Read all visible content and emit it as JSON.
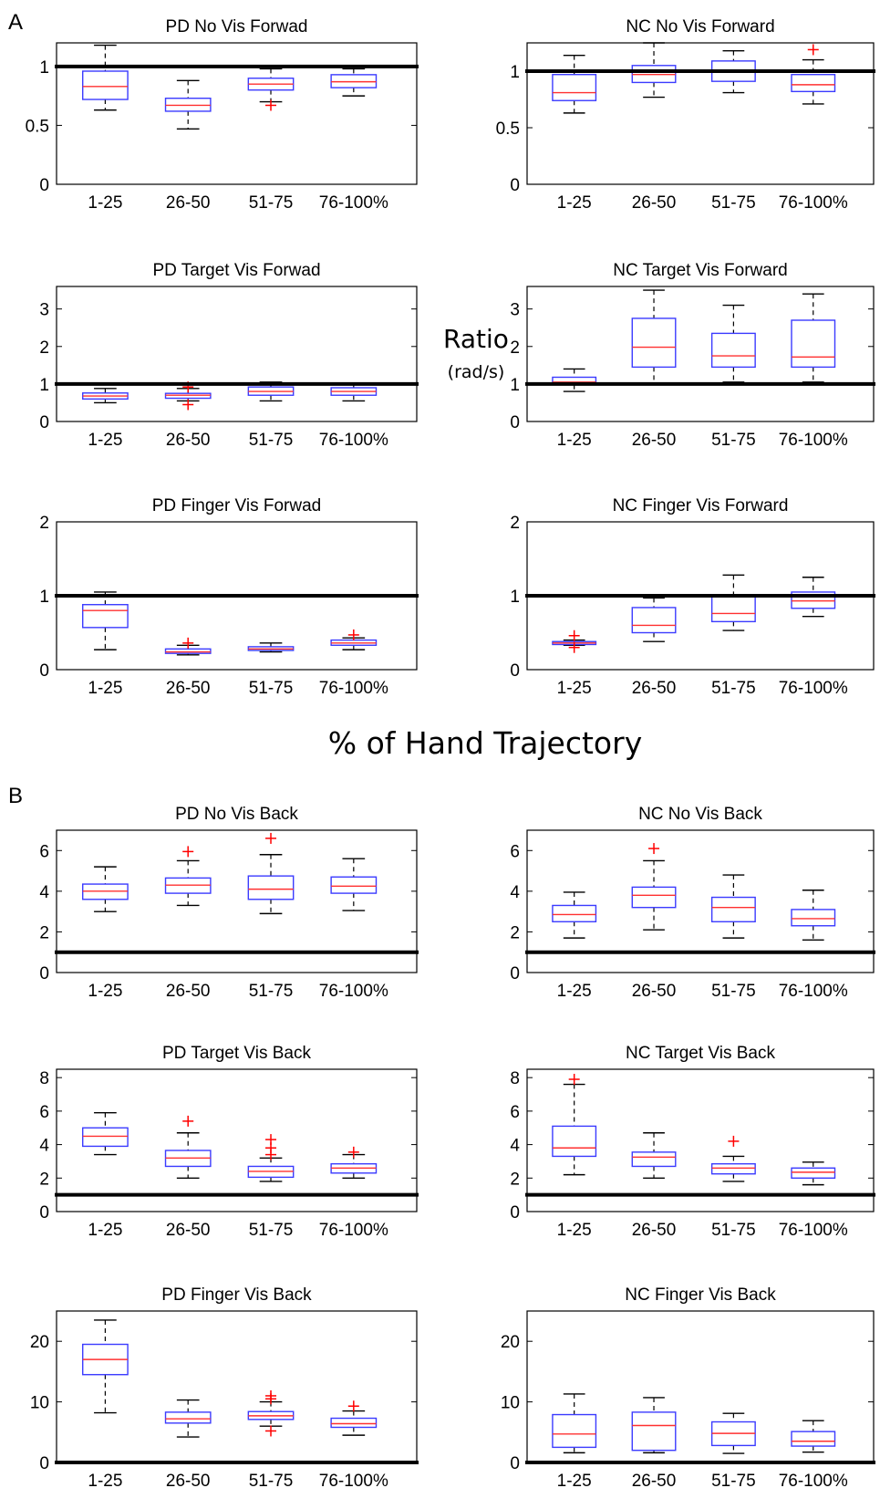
{
  "figure": {
    "panel_a_letter": "A",
    "panel_b_letter": "B",
    "ylabel_main": "Ratio",
    "ylabel_unit": "(rad/s)",
    "xlabel_main": "% of Hand Trajectory"
  },
  "colors": {
    "box": "#3b3bff",
    "median": "#ff3030",
    "outlier": "#ff0000",
    "whisker": "#000000",
    "reference": "#000000"
  },
  "chart_data": [
    {
      "type": "box",
      "title": "PD No Vis Forwad",
      "categories": [
        "1-25",
        "26-50",
        "51-75",
        "76-100%"
      ],
      "ylim": [
        0,
        1.2
      ],
      "yticks": [
        0,
        0.5,
        1
      ],
      "reference_line": 1,
      "boxes": [
        {
          "whisker_low": 0.63,
          "q1": 0.72,
          "median": 0.83,
          "q3": 0.96,
          "whisker_high": 1.18,
          "outliers": []
        },
        {
          "whisker_low": 0.47,
          "q1": 0.62,
          "median": 0.67,
          "q3": 0.73,
          "whisker_high": 0.88,
          "outliers": []
        },
        {
          "whisker_low": 0.7,
          "q1": 0.8,
          "median": 0.85,
          "q3": 0.9,
          "whisker_high": 0.98,
          "outliers": [
            0.67
          ]
        },
        {
          "whisker_low": 0.75,
          "q1": 0.82,
          "median": 0.87,
          "q3": 0.93,
          "whisker_high": 0.98,
          "outliers": []
        }
      ]
    },
    {
      "type": "box",
      "title": "NC No Vis Forward",
      "categories": [
        "1-25",
        "26-50",
        "51-75",
        "76-100%"
      ],
      "ylim": [
        0,
        1.25
      ],
      "yticks": [
        0,
        0.5,
        1
      ],
      "reference_line": 1,
      "boxes": [
        {
          "whisker_low": 0.63,
          "q1": 0.74,
          "median": 0.81,
          "q3": 0.97,
          "whisker_high": 1.14,
          "outliers": []
        },
        {
          "whisker_low": 0.77,
          "q1": 0.9,
          "median": 0.97,
          "q3": 1.05,
          "whisker_high": 1.25,
          "outliers": []
        },
        {
          "whisker_low": 0.81,
          "q1": 0.91,
          "median": 1.0,
          "q3": 1.09,
          "whisker_high": 1.18,
          "outliers": []
        },
        {
          "whisker_low": 0.71,
          "q1": 0.82,
          "median": 0.88,
          "q3": 0.97,
          "whisker_high": 1.1,
          "outliers": [
            1.19
          ]
        }
      ]
    },
    {
      "type": "box",
      "title": "PD Target Vis Forwad",
      "categories": [
        "1-25",
        "26-50",
        "51-75",
        "76-100%"
      ],
      "ylim": [
        0,
        3.6
      ],
      "yticks": [
        0,
        1,
        2,
        3
      ],
      "reference_line": 1,
      "boxes": [
        {
          "whisker_low": 0.5,
          "q1": 0.6,
          "median": 0.68,
          "q3": 0.76,
          "whisker_high": 0.88,
          "outliers": []
        },
        {
          "whisker_low": 0.55,
          "q1": 0.62,
          "median": 0.7,
          "q3": 0.75,
          "whisker_high": 0.88,
          "outliers": [
            0.45,
            0.92
          ]
        },
        {
          "whisker_low": 0.55,
          "q1": 0.7,
          "median": 0.8,
          "q3": 0.92,
          "whisker_high": 1.05,
          "outliers": []
        },
        {
          "whisker_low": 0.55,
          "q1": 0.7,
          "median": 0.8,
          "q3": 0.9,
          "whisker_high": 0.98,
          "outliers": []
        }
      ]
    },
    {
      "type": "box",
      "title": "NC Target Vis Forward",
      "categories": [
        "1-25",
        "26-50",
        "51-75",
        "76-100%"
      ],
      "ylim": [
        0,
        3.6
      ],
      "yticks": [
        0,
        1,
        2,
        3
      ],
      "reference_line": 1,
      "boxes": [
        {
          "whisker_low": 0.8,
          "q1": 0.98,
          "median": 1.05,
          "q3": 1.18,
          "whisker_high": 1.4,
          "outliers": []
        },
        {
          "whisker_low": 1.0,
          "q1": 1.45,
          "median": 1.98,
          "q3": 2.75,
          "whisker_high": 3.5,
          "outliers": []
        },
        {
          "whisker_low": 1.05,
          "q1": 1.45,
          "median": 1.75,
          "q3": 2.35,
          "whisker_high": 3.1,
          "outliers": []
        },
        {
          "whisker_low": 1.05,
          "q1": 1.45,
          "median": 1.72,
          "q3": 2.7,
          "whisker_high": 3.4,
          "outliers": []
        }
      ]
    },
    {
      "type": "box",
      "title": "PD Finger Vis Forwad",
      "categories": [
        "1-25",
        "26-50",
        "51-75",
        "76-100%"
      ],
      "ylim": [
        0,
        2
      ],
      "yticks": [
        0,
        1,
        2
      ],
      "reference_line": 1,
      "boxes": [
        {
          "whisker_low": 0.27,
          "q1": 0.57,
          "median": 0.8,
          "q3": 0.88,
          "whisker_high": 1.05,
          "outliers": []
        },
        {
          "whisker_low": 0.2,
          "q1": 0.22,
          "median": 0.24,
          "q3": 0.28,
          "whisker_high": 0.33,
          "outliers": [
            0.36
          ]
        },
        {
          "whisker_low": 0.24,
          "q1": 0.26,
          "median": 0.28,
          "q3": 0.31,
          "whisker_high": 0.36,
          "outliers": []
        },
        {
          "whisker_low": 0.27,
          "q1": 0.33,
          "median": 0.36,
          "q3": 0.4,
          "whisker_high": 0.43,
          "outliers": [
            0.47
          ]
        }
      ]
    },
    {
      "type": "box",
      "title": "NC Finger Vis Forward",
      "categories": [
        "1-25",
        "26-50",
        "51-75",
        "76-100%"
      ],
      "ylim": [
        0,
        2
      ],
      "yticks": [
        0,
        1,
        2
      ],
      "reference_line": 1,
      "boxes": [
        {
          "whisker_low": 0.33,
          "q1": 0.34,
          "median": 0.36,
          "q3": 0.38,
          "whisker_high": 0.4,
          "outliers": [
            0.3,
            0.46
          ]
        },
        {
          "whisker_low": 0.38,
          "q1": 0.5,
          "median": 0.6,
          "q3": 0.84,
          "whisker_high": 0.97,
          "outliers": []
        },
        {
          "whisker_low": 0.53,
          "q1": 0.65,
          "median": 0.76,
          "q3": 1.0,
          "whisker_high": 1.28,
          "outliers": []
        },
        {
          "whisker_low": 0.72,
          "q1": 0.83,
          "median": 0.93,
          "q3": 1.05,
          "whisker_high": 1.25,
          "outliers": []
        }
      ]
    },
    {
      "type": "box",
      "title": "PD No Vis Back",
      "categories": [
        "1-25",
        "26-50",
        "51-75",
        "76-100%"
      ],
      "ylim": [
        0,
        7
      ],
      "yticks": [
        0,
        2,
        4,
        6
      ],
      "reference_line": 1,
      "boxes": [
        {
          "whisker_low": 3.0,
          "q1": 3.6,
          "median": 4.0,
          "q3": 4.35,
          "whisker_high": 5.2,
          "outliers": []
        },
        {
          "whisker_low": 3.3,
          "q1": 3.9,
          "median": 4.3,
          "q3": 4.65,
          "whisker_high": 5.5,
          "outliers": [
            5.95
          ]
        },
        {
          "whisker_low": 2.9,
          "q1": 3.6,
          "median": 4.1,
          "q3": 4.75,
          "whisker_high": 5.8,
          "outliers": [
            6.6
          ]
        },
        {
          "whisker_low": 3.05,
          "q1": 3.9,
          "median": 4.25,
          "q3": 4.7,
          "whisker_high": 5.6,
          "outliers": []
        }
      ]
    },
    {
      "type": "box",
      "title": "NC No Vis Back",
      "categories": [
        "1-25",
        "26-50",
        "51-75",
        "76-100%"
      ],
      "ylim": [
        0,
        7
      ],
      "yticks": [
        0,
        2,
        4,
        6
      ],
      "reference_line": 1,
      "boxes": [
        {
          "whisker_low": 1.7,
          "q1": 2.5,
          "median": 2.85,
          "q3": 3.3,
          "whisker_high": 3.95,
          "outliers": []
        },
        {
          "whisker_low": 2.1,
          "q1": 3.2,
          "median": 3.8,
          "q3": 4.2,
          "whisker_high": 5.5,
          "outliers": [
            6.1
          ]
        },
        {
          "whisker_low": 1.7,
          "q1": 2.5,
          "median": 3.2,
          "q3": 3.7,
          "whisker_high": 4.8,
          "outliers": []
        },
        {
          "whisker_low": 1.6,
          "q1": 2.3,
          "median": 2.65,
          "q3": 3.1,
          "whisker_high": 4.05,
          "outliers": []
        }
      ]
    },
    {
      "type": "box",
      "title": "PD Target Vis Back",
      "categories": [
        "1-25",
        "26-50",
        "51-75",
        "76-100%"
      ],
      "ylim": [
        0,
        8.5
      ],
      "yticks": [
        0,
        2,
        4,
        6,
        8
      ],
      "reference_line": 1,
      "boxes": [
        {
          "whisker_low": 3.4,
          "q1": 3.9,
          "median": 4.5,
          "q3": 5.0,
          "whisker_high": 5.9,
          "outliers": []
        },
        {
          "whisker_low": 2.0,
          "q1": 2.7,
          "median": 3.2,
          "q3": 3.65,
          "whisker_high": 4.7,
          "outliers": [
            5.4
          ]
        },
        {
          "whisker_low": 1.8,
          "q1": 2.05,
          "median": 2.4,
          "q3": 2.7,
          "whisker_high": 3.2,
          "outliers": [
            3.4,
            3.8,
            4.3
          ]
        },
        {
          "whisker_low": 2.0,
          "q1": 2.3,
          "median": 2.6,
          "q3": 2.85,
          "whisker_high": 3.4,
          "outliers": [
            3.55
          ]
        }
      ]
    },
    {
      "type": "box",
      "title": "NC Target Vis Back",
      "categories": [
        "1-25",
        "26-50",
        "51-75",
        "76-100%"
      ],
      "ylim": [
        0,
        8.5
      ],
      "yticks": [
        0,
        2,
        4,
        6,
        8
      ],
      "reference_line": 1,
      "boxes": [
        {
          "whisker_low": 2.2,
          "q1": 3.3,
          "median": 3.8,
          "q3": 5.1,
          "whisker_high": 7.6,
          "outliers": [
            7.9
          ]
        },
        {
          "whisker_low": 2.0,
          "q1": 2.7,
          "median": 3.25,
          "q3": 3.55,
          "whisker_high": 4.7,
          "outliers": []
        },
        {
          "whisker_low": 1.8,
          "q1": 2.25,
          "median": 2.6,
          "q3": 2.85,
          "whisker_high": 3.3,
          "outliers": [
            4.2
          ]
        },
        {
          "whisker_low": 1.6,
          "q1": 2.0,
          "median": 2.35,
          "q3": 2.6,
          "whisker_high": 2.95,
          "outliers": []
        }
      ]
    },
    {
      "type": "box",
      "title": "PD Finger Vis Back",
      "categories": [
        "1-25",
        "26-50",
        "51-75",
        "76-100%"
      ],
      "ylim": [
        0,
        25
      ],
      "yticks": [
        0,
        10,
        20
      ],
      "reference_line": 0,
      "boxes": [
        {
          "whisker_low": 8.2,
          "q1": 14.5,
          "median": 17.0,
          "q3": 19.5,
          "whisker_high": 23.5,
          "outliers": []
        },
        {
          "whisker_low": 4.2,
          "q1": 6.5,
          "median": 7.2,
          "q3": 8.3,
          "whisker_high": 10.3,
          "outliers": []
        },
        {
          "whisker_low": 6.0,
          "q1": 7.1,
          "median": 7.7,
          "q3": 8.4,
          "whisker_high": 10.0,
          "outliers": [
            5.2,
            10.5,
            11.0
          ]
        },
        {
          "whisker_low": 4.5,
          "q1": 5.8,
          "median": 6.4,
          "q3": 7.3,
          "whisker_high": 8.5,
          "outliers": [
            9.3
          ]
        }
      ]
    },
    {
      "type": "box",
      "title": "NC Finger Vis Back",
      "categories": [
        "1-25",
        "26-50",
        "51-75",
        "76-100%"
      ],
      "ylim": [
        0,
        25
      ],
      "yticks": [
        0,
        10,
        20
      ],
      "reference_line": 0,
      "boxes": [
        {
          "whisker_low": 1.6,
          "q1": 2.5,
          "median": 4.7,
          "q3": 7.9,
          "whisker_high": 11.3,
          "outliers": []
        },
        {
          "whisker_low": 1.6,
          "q1": 2.0,
          "median": 6.1,
          "q3": 8.3,
          "whisker_high": 10.7,
          "outliers": []
        },
        {
          "whisker_low": 1.5,
          "q1": 2.8,
          "median": 4.8,
          "q3": 6.7,
          "whisker_high": 8.1,
          "outliers": []
        },
        {
          "whisker_low": 1.7,
          "q1": 2.7,
          "median": 3.5,
          "q3": 5.1,
          "whisker_high": 6.9,
          "outliers": []
        }
      ]
    }
  ]
}
